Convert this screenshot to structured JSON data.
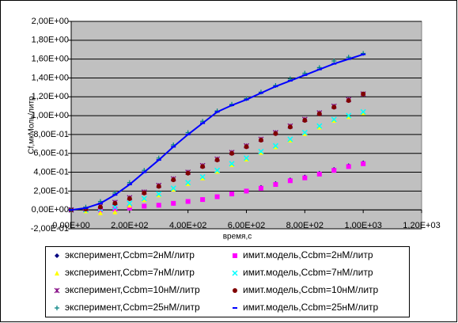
{
  "chart_data": {
    "type": "scatter",
    "ylabel": "Cf,мкМоль/литр",
    "xlabel": "время,с",
    "x": [
      0,
      50,
      100,
      150,
      200,
      250,
      300,
      350,
      400,
      450,
      500,
      550,
      600,
      650,
      700,
      750,
      800,
      850,
      900,
      950,
      1000
    ],
    "xlim": [
      0,
      1200
    ],
    "xticks": [
      {
        "value": 0,
        "label": "0,00E+00"
      },
      {
        "value": 200,
        "label": "2,00E+02"
      },
      {
        "value": 400,
        "label": "4,00E+02"
      },
      {
        "value": 600,
        "label": "6,00E+02"
      },
      {
        "value": 800,
        "label": "8,00E+02"
      },
      {
        "value": 1000,
        "label": "1,00E+03"
      },
      {
        "value": 1200,
        "label": "1,20E+03"
      }
    ],
    "ylim": [
      -0.2,
      2.0
    ],
    "yticks": [
      {
        "value": -0.2,
        "label": "-2,00E-01"
      },
      {
        "value": 0,
        "label": "0,00E+00"
      },
      {
        "value": 0.2,
        "label": "2,00E-01"
      },
      {
        "value": 0.4,
        "label": "4,00E-01"
      },
      {
        "value": 0.6,
        "label": "6,00E-01"
      },
      {
        "value": 0.8,
        "label": "8,00E-01"
      },
      {
        "value": 1.0,
        "label": "1,00E+00"
      },
      {
        "value": 1.2,
        "label": "1,20E+00"
      },
      {
        "value": 1.4,
        "label": "1,40E+00"
      },
      {
        "value": 1.6,
        "label": "1,60E+00"
      },
      {
        "value": 1.8,
        "label": "1,80E+00"
      },
      {
        "value": 2.0,
        "label": "2,00E+00"
      }
    ],
    "grid": true,
    "series": [
      {
        "name": "эксперимент,Ccbm=2нМ/литр",
        "color": "#000080",
        "marker": "diamond",
        "values": [
          0,
          0,
          0,
          0.01,
          0.02,
          0.04,
          0.05,
          0.07,
          0.09,
          0.11,
          0.14,
          0.17,
          0.2,
          0.24,
          0.28,
          0.32,
          0.35,
          0.39,
          0.43,
          0.47,
          0.5
        ]
      },
      {
        "name": "имит.модель,Ccbm=2нМ/литр",
        "color": "#ff00ff",
        "marker": "square",
        "values": [
          0,
          0,
          0,
          0.01,
          0.02,
          0.04,
          0.05,
          0.07,
          0.09,
          0.11,
          0.14,
          0.17,
          0.2,
          0.23,
          0.27,
          0.31,
          0.34,
          0.38,
          0.42,
          0.46,
          0.49
        ]
      },
      {
        "name": "эксперимент,Ccbm=7нМ/литр",
        "color": "#ffff00",
        "marker": "triangle",
        "values": [
          0,
          -0.01,
          -0.03,
          -0.02,
          0.05,
          0.11,
          0.16,
          0.22,
          0.28,
          0.34,
          0.41,
          0.48,
          0.54,
          0.61,
          0.67,
          0.74,
          0.81,
          0.88,
          0.95,
          0.99,
          1.03
        ]
      },
      {
        "name": "имит.модель,Ccbm=7нМ/литр",
        "color": "#00ffff",
        "marker": "x",
        "values": [
          0,
          0,
          0.01,
          0.03,
          0.07,
          0.12,
          0.17,
          0.23,
          0.29,
          0.35,
          0.42,
          0.49,
          0.55,
          0.62,
          0.68,
          0.75,
          0.82,
          0.89,
          0.96,
          1.0,
          1.04
        ]
      },
      {
        "name": "эксперимент,Ccbm=10нМ/литр",
        "color": "#800080",
        "marker": "star",
        "values": [
          0,
          0.01,
          0.04,
          0.08,
          0.13,
          0.19,
          0.26,
          0.33,
          0.4,
          0.47,
          0.54,
          0.61,
          0.68,
          0.75,
          0.82,
          0.89,
          0.96,
          1.03,
          1.1,
          1.17,
          1.23
        ]
      },
      {
        "name": "имит.модель,Ccbm=10нМ/литр",
        "color": "#800000",
        "marker": "circle",
        "values": [
          0,
          0.01,
          0.03,
          0.07,
          0.12,
          0.18,
          0.25,
          0.32,
          0.39,
          0.46,
          0.53,
          0.6,
          0.67,
          0.74,
          0.81,
          0.88,
          0.95,
          1.02,
          1.09,
          1.16,
          1.23
        ]
      },
      {
        "name": "эксперимент,Ccbm=25нМ/литр",
        "color": "#008080",
        "marker": "plus",
        "values": [
          0,
          0.03,
          0.09,
          0.18,
          0.29,
          0.42,
          0.55,
          0.69,
          0.82,
          0.94,
          1.05,
          1.12,
          1.18,
          1.25,
          1.32,
          1.39,
          1.45,
          1.51,
          1.58,
          1.62,
          1.66
        ]
      },
      {
        "name": "имит.модель,Ccbm=25нМ/литр",
        "color": "#0000ff",
        "marker": "dash",
        "line": true,
        "values": [
          0,
          0.02,
          0.07,
          0.16,
          0.27,
          0.4,
          0.53,
          0.67,
          0.8,
          0.92,
          1.04,
          1.11,
          1.17,
          1.24,
          1.31,
          1.37,
          1.43,
          1.49,
          1.55,
          1.6,
          1.65
        ]
      }
    ]
  }
}
